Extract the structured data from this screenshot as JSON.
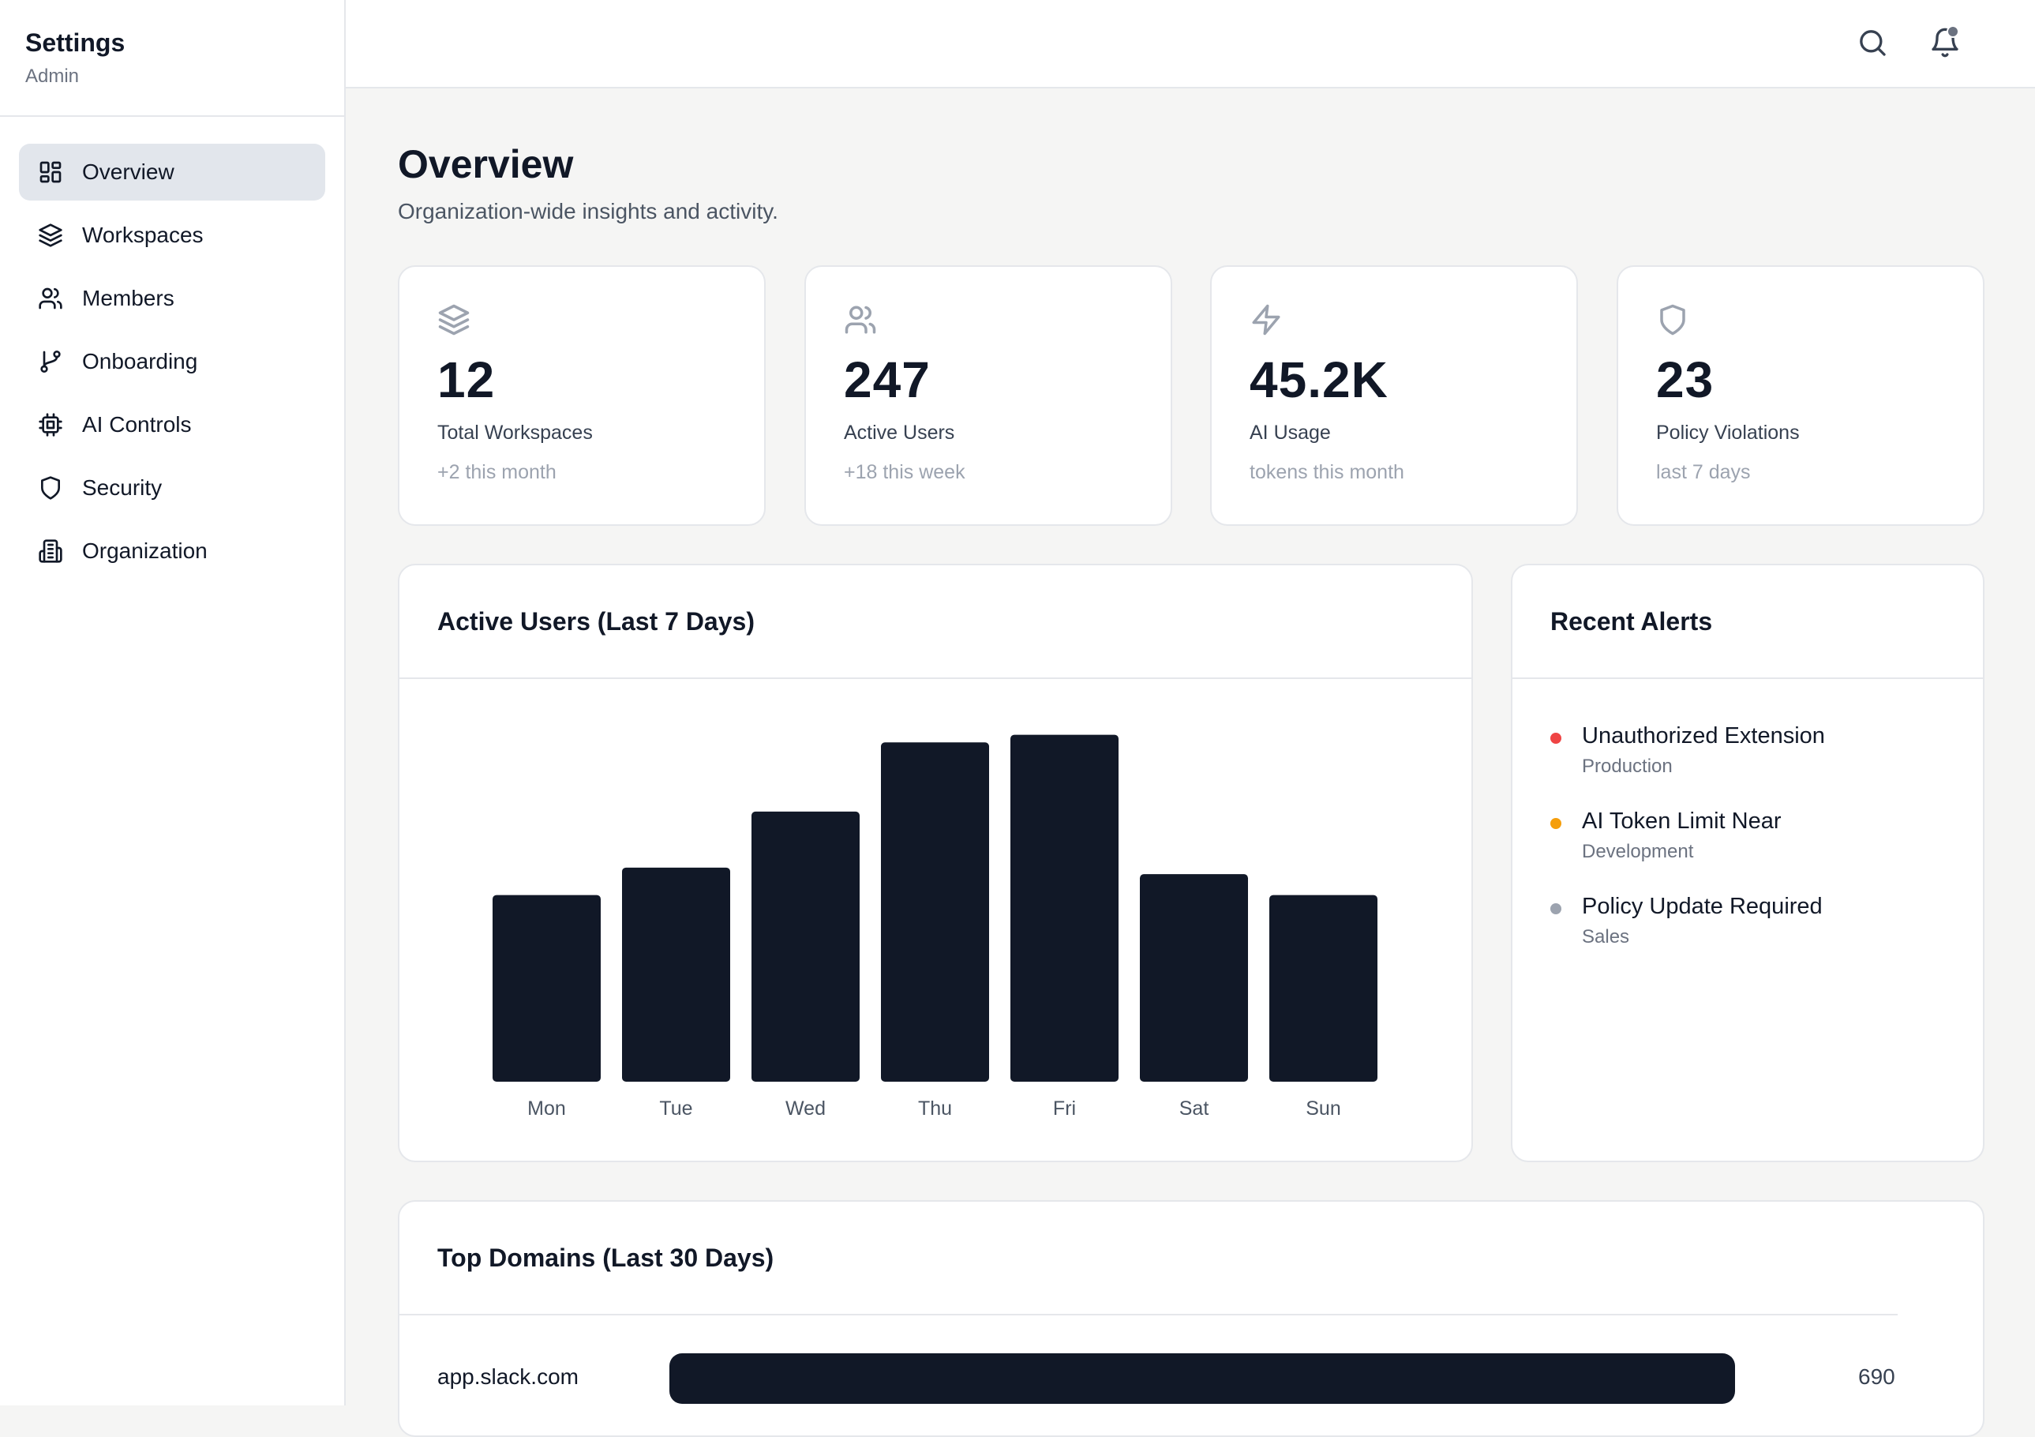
{
  "sidebar": {
    "title": "Settings",
    "subtitle": "Admin",
    "items": [
      {
        "label": "Overview",
        "icon": "dashboard-icon",
        "active": true
      },
      {
        "label": "Workspaces",
        "icon": "layers-icon"
      },
      {
        "label": "Members",
        "icon": "users-icon"
      },
      {
        "label": "Onboarding",
        "icon": "git-branch-icon"
      },
      {
        "label": "AI Controls",
        "icon": "cpu-icon"
      },
      {
        "label": "Security",
        "icon": "shield-icon"
      },
      {
        "label": "Organization",
        "icon": "building-icon"
      }
    ]
  },
  "topbar": {
    "icons": [
      "search-icon",
      "bell-icon"
    ]
  },
  "header": {
    "title": "Overview",
    "subtitle": "Organization-wide insights and activity."
  },
  "stats": [
    {
      "value": "12",
      "label": "Total Workspaces",
      "note": "+2 this month",
      "icon": "layers-icon"
    },
    {
      "value": "247",
      "label": "Active Users",
      "note": "+18 this week",
      "icon": "users-icon"
    },
    {
      "value": "45.2K",
      "label": "AI Usage",
      "note": "tokens this month",
      "icon": "zap-icon"
    },
    {
      "value": "23",
      "label": "Policy Violations",
      "note": "last 7 days",
      "icon": "shield-icon"
    }
  ],
  "active_users_card": {
    "title": "Active Users (Last 7 Days)"
  },
  "alerts_card": {
    "title": "Recent Alerts",
    "items": [
      {
        "title": "Unauthorized Extension",
        "sub": "Production",
        "color": "#ef4444"
      },
      {
        "title": "AI Token Limit Near",
        "sub": "Development",
        "color": "#f59e0b"
      },
      {
        "title": "Policy Update Required",
        "sub": "Sales",
        "color": "#9ca3af"
      }
    ]
  },
  "domains_card": {
    "title": "Top Domains (Last 30 Days)",
    "rows": [
      {
        "domain": "app.slack.com",
        "count": "690",
        "fraction": 1.0
      }
    ]
  },
  "colors": {
    "bar": "#111827",
    "accent_bg": "#e2e6ec"
  },
  "chart_data": {
    "type": "bar",
    "categories": [
      "Mon",
      "Tue",
      "Wed",
      "Thu",
      "Fri",
      "Sat",
      "Sun"
    ],
    "values": [
      170,
      195,
      246,
      309,
      316,
      189,
      170
    ],
    "ylim": [
      0,
      320
    ],
    "grid": false,
    "title": "Active Users (Last 7 Days)",
    "xlabel": "",
    "ylabel": ""
  }
}
